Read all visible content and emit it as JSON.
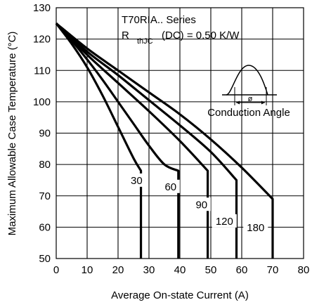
{
  "chart_data": {
    "type": "line",
    "title": "",
    "xlabel": "Average On-state Current (A)",
    "ylabel": "Maximum Allowable Case Temperature (°C)",
    "xlim": [
      0,
      80
    ],
    "ylim": [
      50,
      130
    ],
    "xticks": [
      "0",
      "10",
      "20",
      "30",
      "40",
      "50",
      "60",
      "70",
      "80"
    ],
    "yticks": [
      "50",
      "60",
      "70",
      "80",
      "90",
      "100",
      "110",
      "120",
      "130"
    ],
    "grid": true,
    "annotations": {
      "series_line1": "T70RIA.. Series",
      "r_prefix": "R",
      "r_subscript": "thJC",
      "r_suffix": "(DC) = 0.50 K/W",
      "conduction_label": "Conduction Angle",
      "angle_symbol": "ø"
    },
    "series": [
      {
        "name": "30",
        "x": [
          0,
          5,
          10,
          15,
          20,
          25,
          27.4,
          27.4
        ],
        "y": [
          125,
          118.5,
          111,
          102,
          92,
          82,
          78,
          50
        ]
      },
      {
        "name": "60",
        "x": [
          0,
          5,
          10,
          15,
          20,
          25,
          30,
          35,
          39.5,
          39.5
        ],
        "y": [
          125,
          119.5,
          113.5,
          107,
          100,
          93,
          86,
          80,
          78,
          50
        ]
      },
      {
        "name": "90",
        "x": [
          0,
          10,
          20,
          30,
          40,
          49,
          49,
          49
        ],
        "y": [
          125,
          115,
          106,
          97,
          87.5,
          78,
          78,
          50
        ]
      },
      {
        "name": "120",
        "x": [
          0,
          10,
          20,
          30,
          40,
          50,
          58.3,
          58.3
        ],
        "y": [
          125,
          116,
          108.5,
          100.5,
          92.5,
          84,
          75,
          50
        ]
      },
      {
        "name": "180",
        "x": [
          0,
          10,
          20,
          30,
          40,
          50,
          60,
          70,
          70
        ],
        "y": [
          125,
          117,
          110,
          103,
          96,
          88,
          79,
          69,
          50
        ]
      }
    ]
  }
}
